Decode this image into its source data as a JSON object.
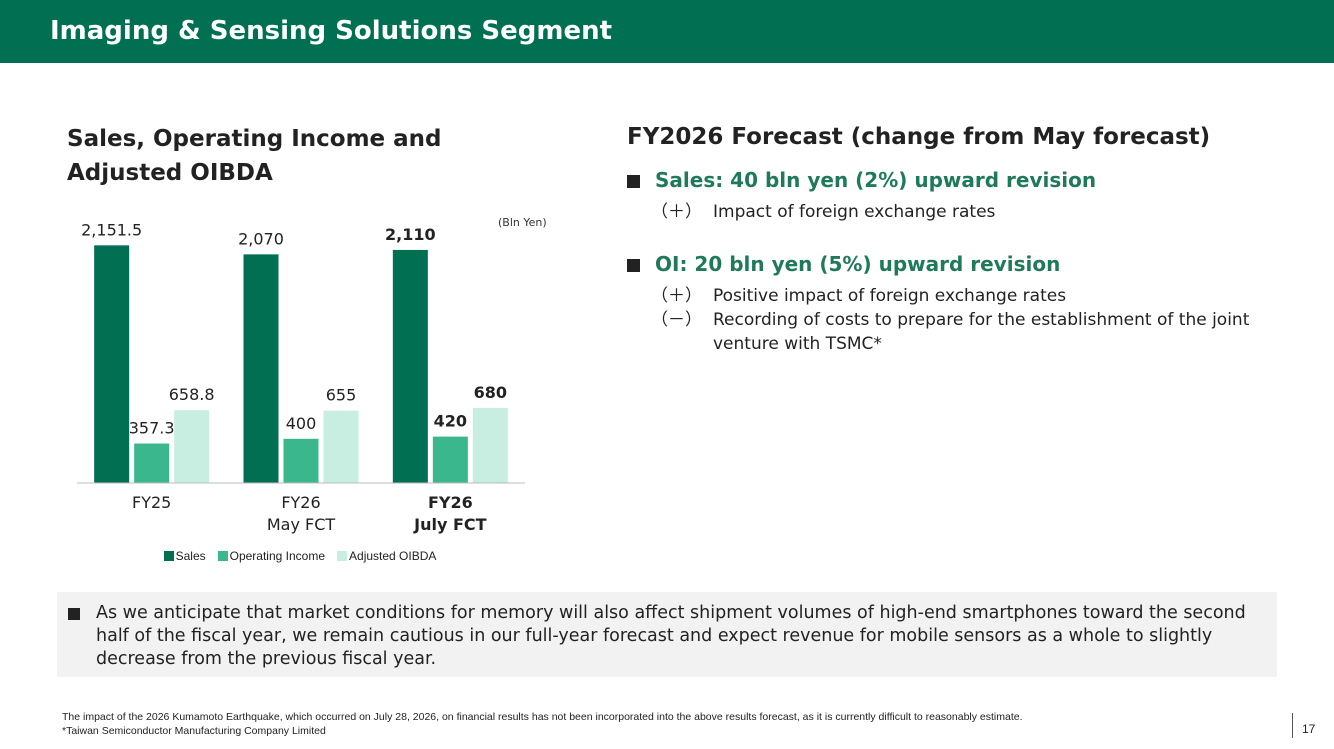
{
  "header": {
    "title": "Imaging & Sensing Solutions Segment"
  },
  "chart_data": {
    "type": "bar",
    "title": "Sales, Operating Income and Adjusted OIBDA",
    "unit_label": "(Bln Yen)",
    "categories": [
      "FY25",
      "FY26\nMay FCT",
      "FY26\nJuly FCT"
    ],
    "series": [
      {
        "name": "Sales",
        "color": "#006f52",
        "values": [
          2151.5,
          2070,
          2110
        ],
        "value_labels": [
          "2,151.5",
          "2,070",
          "2,110"
        ]
      },
      {
        "name": "Operating Income",
        "color": "#3ab78c",
        "values": [
          357.3,
          400,
          420
        ]
      },
      {
        "name": "Adjusted OIBDA",
        "color": "#c8eee1",
        "values": [
          658.8,
          655,
          680
        ]
      }
    ],
    "ylim": [
      0,
      2200
    ]
  },
  "forecast": {
    "title": "FY2026 Forecast (change from May forecast)",
    "items": [
      {
        "heading": "Sales: 40 bln yen (2%) upward revision",
        "points": [
          {
            "sign": "（＋）",
            "text": "Impact of foreign exchange rates"
          }
        ]
      },
      {
        "heading": "OI: 20 bln yen (5%) upward revision",
        "points": [
          {
            "sign": "（＋）",
            "text": "Positive impact of foreign exchange rates"
          },
          {
            "sign": "（－）",
            "text": "Recording of costs to prepare for the establishment of the joint venture with TSMC*"
          }
        ]
      }
    ]
  },
  "note": "As we anticipate that market conditions for memory will also affect shipment volumes of high-end smartphones toward the second half of the fiscal year, we remain cautious in our full-year forecast and expect revenue for mobile sensors as a whole to slightly decrease from the previous fiscal year.",
  "footnotes": [
    "The impact of the 2026 Kumamoto Earthquake, which occurred on July 28, 2026, on financial results has not been incorporated into the above results forecast, as it is currently difficult to reasonably estimate.",
    "*Taiwan Semiconductor Manufacturing Company Limited"
  ],
  "page_number": 17
}
